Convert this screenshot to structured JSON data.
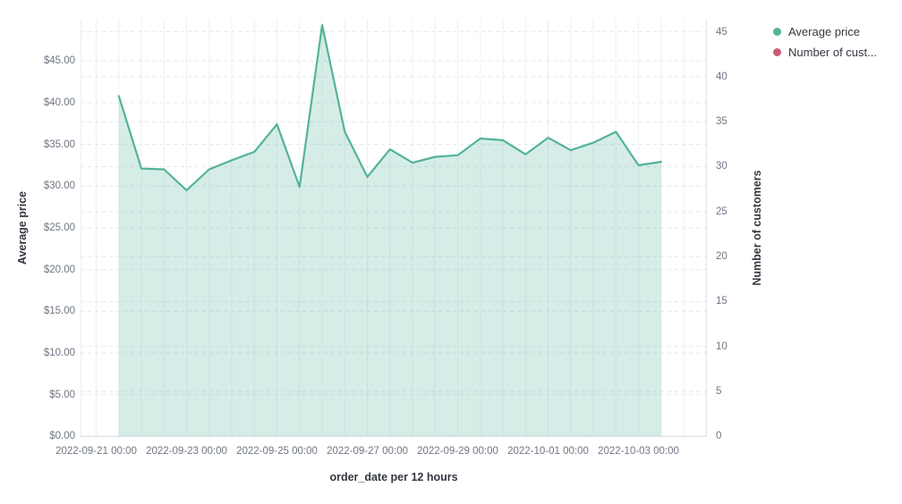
{
  "legend": {
    "items": [
      {
        "label": "Average price",
        "color": "#54b399"
      },
      {
        "label": "Number of cust...",
        "color": "#cc5b76"
      }
    ]
  },
  "axes": {
    "left": {
      "title": "Average price",
      "tick_labels": [
        "$0.00",
        "$5.00",
        "$10.00",
        "$15.00",
        "$20.00",
        "$25.00",
        "$30.00",
        "$35.00",
        "$40.00",
        "$45.00"
      ]
    },
    "right": {
      "title": "Number of customers",
      "tick_labels": [
        "0",
        "5",
        "10",
        "15",
        "20",
        "25",
        "30",
        "35",
        "40",
        "45"
      ]
    },
    "bottom": {
      "title": "order_date per 12 hours",
      "tick_labels": [
        "2022-09-21 00:00",
        "2022-09-23 00:00",
        "2022-09-25 00:00",
        "2022-09-27 00:00",
        "2022-09-29 00:00",
        "2022-10-01 00:00",
        "2022-10-03 00:00"
      ]
    }
  },
  "chart_data": {
    "type": "area",
    "title": "",
    "xlabel": "order_date per 12 hours",
    "ylabel": "Average price",
    "ylabel_right": "Number of customers",
    "x_interval": "12 hours",
    "left_axis_range": [
      0,
      50
    ],
    "right_axis_range": [
      0,
      46.4
    ],
    "left_ticks": [
      0,
      5,
      10,
      15,
      20,
      25,
      30,
      35,
      40,
      45
    ],
    "right_ticks": [
      0,
      5,
      10,
      15,
      20,
      25,
      30,
      35,
      40,
      45
    ],
    "grid": true,
    "legend_position": "right",
    "x": [
      "2022-09-21 12:00",
      "2022-09-22 00:00",
      "2022-09-22 12:00",
      "2022-09-23 00:00",
      "2022-09-23 12:00",
      "2022-09-24 00:00",
      "2022-09-24 12:00",
      "2022-09-25 00:00",
      "2022-09-25 12:00",
      "2022-09-26 00:00",
      "2022-09-26 12:00",
      "2022-09-27 00:00",
      "2022-09-27 12:00",
      "2022-09-28 00:00",
      "2022-09-28 12:00",
      "2022-09-29 00:00",
      "2022-09-29 12:00",
      "2022-09-30 00:00",
      "2022-09-30 12:00",
      "2022-10-01 00:00",
      "2022-10-01 12:00",
      "2022-10-02 00:00",
      "2022-10-02 12:00",
      "2022-10-03 00:00",
      "2022-10-03 12:00"
    ],
    "series": [
      {
        "name": "Average price",
        "axis": "left",
        "color": "#54b399",
        "fill_opacity": 0.24,
        "visible": true,
        "values": [
          40.8,
          32.1,
          32.0,
          29.5,
          32.0,
          33.1,
          34.1,
          37.4,
          29.9,
          49.3,
          36.5,
          31.1,
          34.4,
          32.8,
          33.5,
          33.7,
          35.7,
          35.5,
          33.8,
          35.8,
          34.3,
          35.2,
          36.5,
          32.5,
          32.9
        ]
      },
      {
        "name": "Number of customers",
        "axis": "right",
        "color": "#cc5b76",
        "visible": false,
        "values": []
      }
    ],
    "grid_color_h": "#e2e6ed",
    "grid_color_v": "#edf0f5",
    "axis_line_color": "#d7dce6"
  }
}
